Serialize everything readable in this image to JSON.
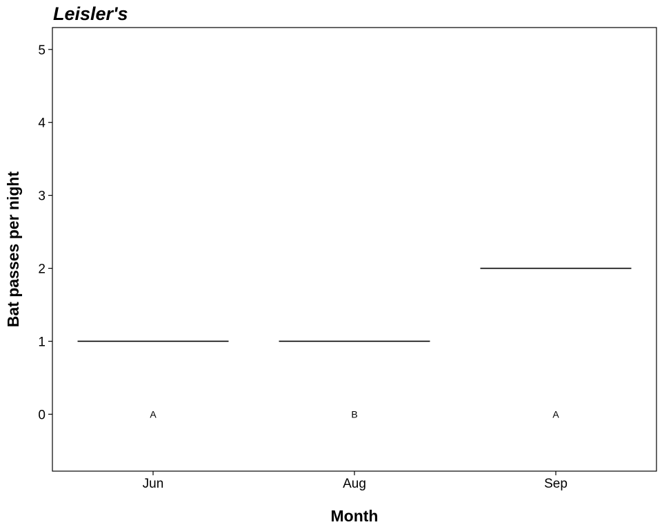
{
  "chart_data": {
    "type": "box",
    "title": "Leisler's",
    "xlabel": "Month",
    "ylabel": "Bat passes per night",
    "categories": [
      "Jun",
      "Aug",
      "Sep"
    ],
    "median": [
      1,
      1,
      2
    ],
    "group_labels": [
      "A",
      "B",
      "A"
    ],
    "group_label_y": 0,
    "ylim": [
      -0.78,
      5.3
    ],
    "yticks": [
      0,
      1,
      2,
      3,
      4,
      5
    ],
    "grid": false,
    "legend": "none"
  }
}
